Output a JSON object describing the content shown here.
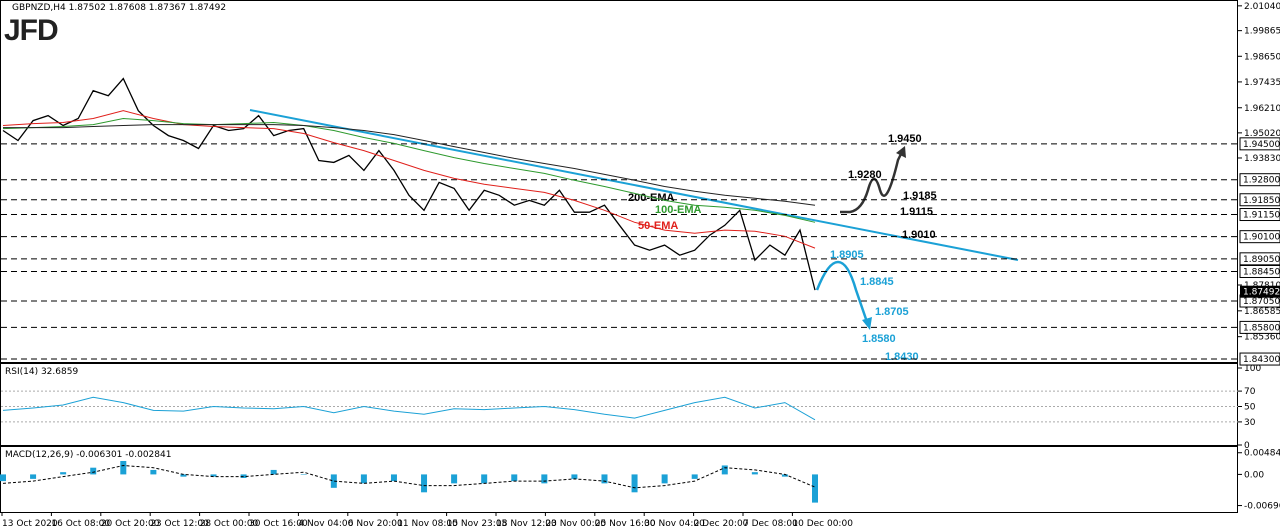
{
  "logo": "JFD",
  "time_axis": [
    "13 Oct 2020",
    "16 Oct 08:00",
    "20 Oct 20:00",
    "23 Oct 12:00",
    "28 Oct 00:00",
    "30 Oct 16:00",
    "4 Nov 04:00",
    "6 Nov 20:00",
    "11 Nov 08:00",
    "15 Nov 23:05",
    "18 Nov 12:00",
    "23 Nov 00:00",
    "25 Nov 16:00",
    "30 Nov 04:00",
    "2 Dec 20:00",
    "7 Dec 08:00",
    "10 Dec 00:00"
  ],
  "chart_data": [
    {
      "type": "line",
      "title": "GBPNZD,H4 1.87502 1.87608 1.87367 1.87492",
      "ylim": [
        1.8416,
        2.0127
      ],
      "yticks": [
        {
          "value": 2.0104,
          "label": "2.01040"
        },
        1.99865,
        {
          "value": 1.9865,
          "label": "1.98650"
        },
        1.97435,
        {
          "value": 1.9621,
          "label": "1.96210"
        },
        {
          "value": 1.9502,
          "label": "1.95020"
        },
        {
          "value": 1.9383,
          "label": "1.93830"
        },
        {
          "value": 1.8781,
          "label": "1.87810"
        },
        1.86585,
        {
          "value": 1.8536,
          "label": "1.85360"
        }
      ],
      "levels": [
        {
          "value": 1.945,
          "label": "1.94500"
        },
        {
          "value": 1.928,
          "label": "1.92800"
        },
        {
          "value": 1.9185,
          "label": "1.91850"
        },
        {
          "value": 1.9115,
          "label": "1.91150"
        },
        {
          "value": 1.901,
          "label": "1.90100"
        },
        {
          "value": 1.8905,
          "label": "1.89050"
        },
        {
          "value": 1.8845,
          "label": "1.88450"
        },
        {
          "value": 1.8705,
          "label": "1.87050"
        },
        {
          "value": 1.858,
          "label": "1.85800"
        },
        {
          "value": 1.843,
          "label": "1.84300"
        }
      ],
      "current": 1.87492,
      "annotations": [
        "1.9450",
        "1.9280",
        "1.9185",
        "1.9115",
        "1.9010",
        "1.8905",
        "1.8845",
        "1.8705",
        "1.8580",
        "1.8430"
      ],
      "series": [
        {
          "color": "#000000",
          "values": [
            1.9513,
            1.9466,
            1.956,
            1.9584,
            1.9537,
            1.957,
            1.9702,
            1.9678,
            1.9759,
            1.9607,
            1.9537,
            1.9489,
            1.9466,
            1.9428,
            1.9537,
            1.9513,
            1.9522,
            1.9584,
            1.9489,
            1.9513,
            1.9522,
            1.9371,
            1.9362,
            1.9395,
            1.9324,
            1.9418,
            1.9324,
            1.9206,
            1.9135,
            1.9267,
            1.9239,
            1.9135,
            1.923,
            1.9206,
            1.9159,
            1.9182,
            1.9159,
            1.923,
            1.9126,
            1.9126,
            1.9159,
            1.9064,
            1.897,
            1.8946,
            1.897,
            1.8922,
            1.8946,
            1.9017,
            1.9064,
            1.9135,
            1.8899,
            1.897,
            1.8922,
            1.9041,
            1.8757
          ]
        },
        {
          "name": "50-EMA",
          "color": "#e0201b",
          "values": [
            1.9537,
            1.9546,
            1.9551,
            1.957,
            1.9607,
            1.957,
            1.9541,
            1.9532,
            1.9527,
            1.9522,
            1.9499,
            1.9456,
            1.9418,
            1.9371,
            1.9324,
            1.9286,
            1.9258,
            1.9239,
            1.922,
            1.9182,
            1.9135,
            1.9078,
            1.9041,
            1.9026,
            1.9041,
            1.9036,
            1.9012,
            1.8956
          ]
        },
        {
          "name": "100-EMA",
          "color": "#2e9a2e",
          "values": [
            1.9522,
            1.9527,
            1.9532,
            1.9541,
            1.957,
            1.956,
            1.9546,
            1.9541,
            1.9546,
            1.9551,
            1.9537,
            1.9513,
            1.948,
            1.9452,
            1.9418,
            1.9385,
            1.9357,
            1.9333,
            1.931,
            1.9277,
            1.9248,
            1.9215,
            1.9182,
            1.9159,
            1.9149,
            1.9135,
            1.9111,
            1.9078
          ]
        },
        {
          "name": "200-EMA",
          "color": "#222222",
          "values": [
            1.9527,
            1.9527,
            1.9527,
            1.9532,
            1.9537,
            1.9541,
            1.9541,
            1.9541,
            1.9541,
            1.9541,
            1.9537,
            1.9527,
            1.9513,
            1.9494,
            1.9466,
            1.9437,
            1.9409,
            1.9381,
            1.9357,
            1.9333,
            1.9305,
            1.9277,
            1.9248,
            1.9225,
            1.9206,
            1.9192,
            1.9178,
            1.9159
          ]
        }
      ]
    },
    {
      "type": "line",
      "title": "RSI(14) 32.6859",
      "ylim": [
        0,
        100
      ],
      "yticks": [
        100,
        70,
        50,
        30,
        0
      ],
      "levels": [
        70,
        50,
        30
      ],
      "series": [
        {
          "color": "#1ba1d6",
          "values": [
            45,
            48,
            52,
            62,
            55,
            45,
            44,
            50,
            48,
            47,
            50,
            42,
            50,
            44,
            40,
            47,
            46,
            48,
            50,
            46,
            40,
            35,
            45,
            55,
            62,
            48,
            55,
            32.6859
          ]
        }
      ]
    },
    {
      "type": "bar",
      "title": "MACD(12,26,9) -0.006301 -0.002841",
      "ylim": [
        -0.0084,
        0.0059
      ],
      "yticks": [
        {
          "value": 0.00484,
          "label": "0.00484"
        },
        {
          "value": 0,
          "label": "0.00"
        },
        {
          "value": -0.00696,
          "label": "-0.006960"
        }
      ],
      "series": [
        {
          "type": "bar",
          "color": "#1ba1d6",
          "values": [
            -0.0015,
            -0.001,
            0.0005,
            0.0015,
            0.003,
            0.001,
            -0.0005,
            -0.0005,
            -0.0008,
            0.001,
            0,
            -0.003,
            -0.002,
            -0.0015,
            -0.004,
            -0.002,
            -0.002,
            -0.0015,
            -0.002,
            -0.001,
            -0.002,
            -0.004,
            -0.002,
            -0.001,
            0.002,
            0.0005,
            -0.0005,
            -0.006301
          ]
        },
        {
          "type": "line",
          "color": "#000000",
          "values": [
            -0.002,
            -0.0015,
            -0.0005,
            0.0005,
            0.002,
            0.0015,
            0,
            -0.0005,
            -0.0005,
            0,
            0.0005,
            -0.0015,
            -0.002,
            -0.0015,
            -0.0025,
            -0.0025,
            -0.002,
            -0.0015,
            -0.0015,
            -0.001,
            -0.0015,
            -0.003,
            -0.0025,
            -0.0015,
            0.0015,
            0.001,
            0,
            -0.002841
          ]
        }
      ]
    }
  ]
}
